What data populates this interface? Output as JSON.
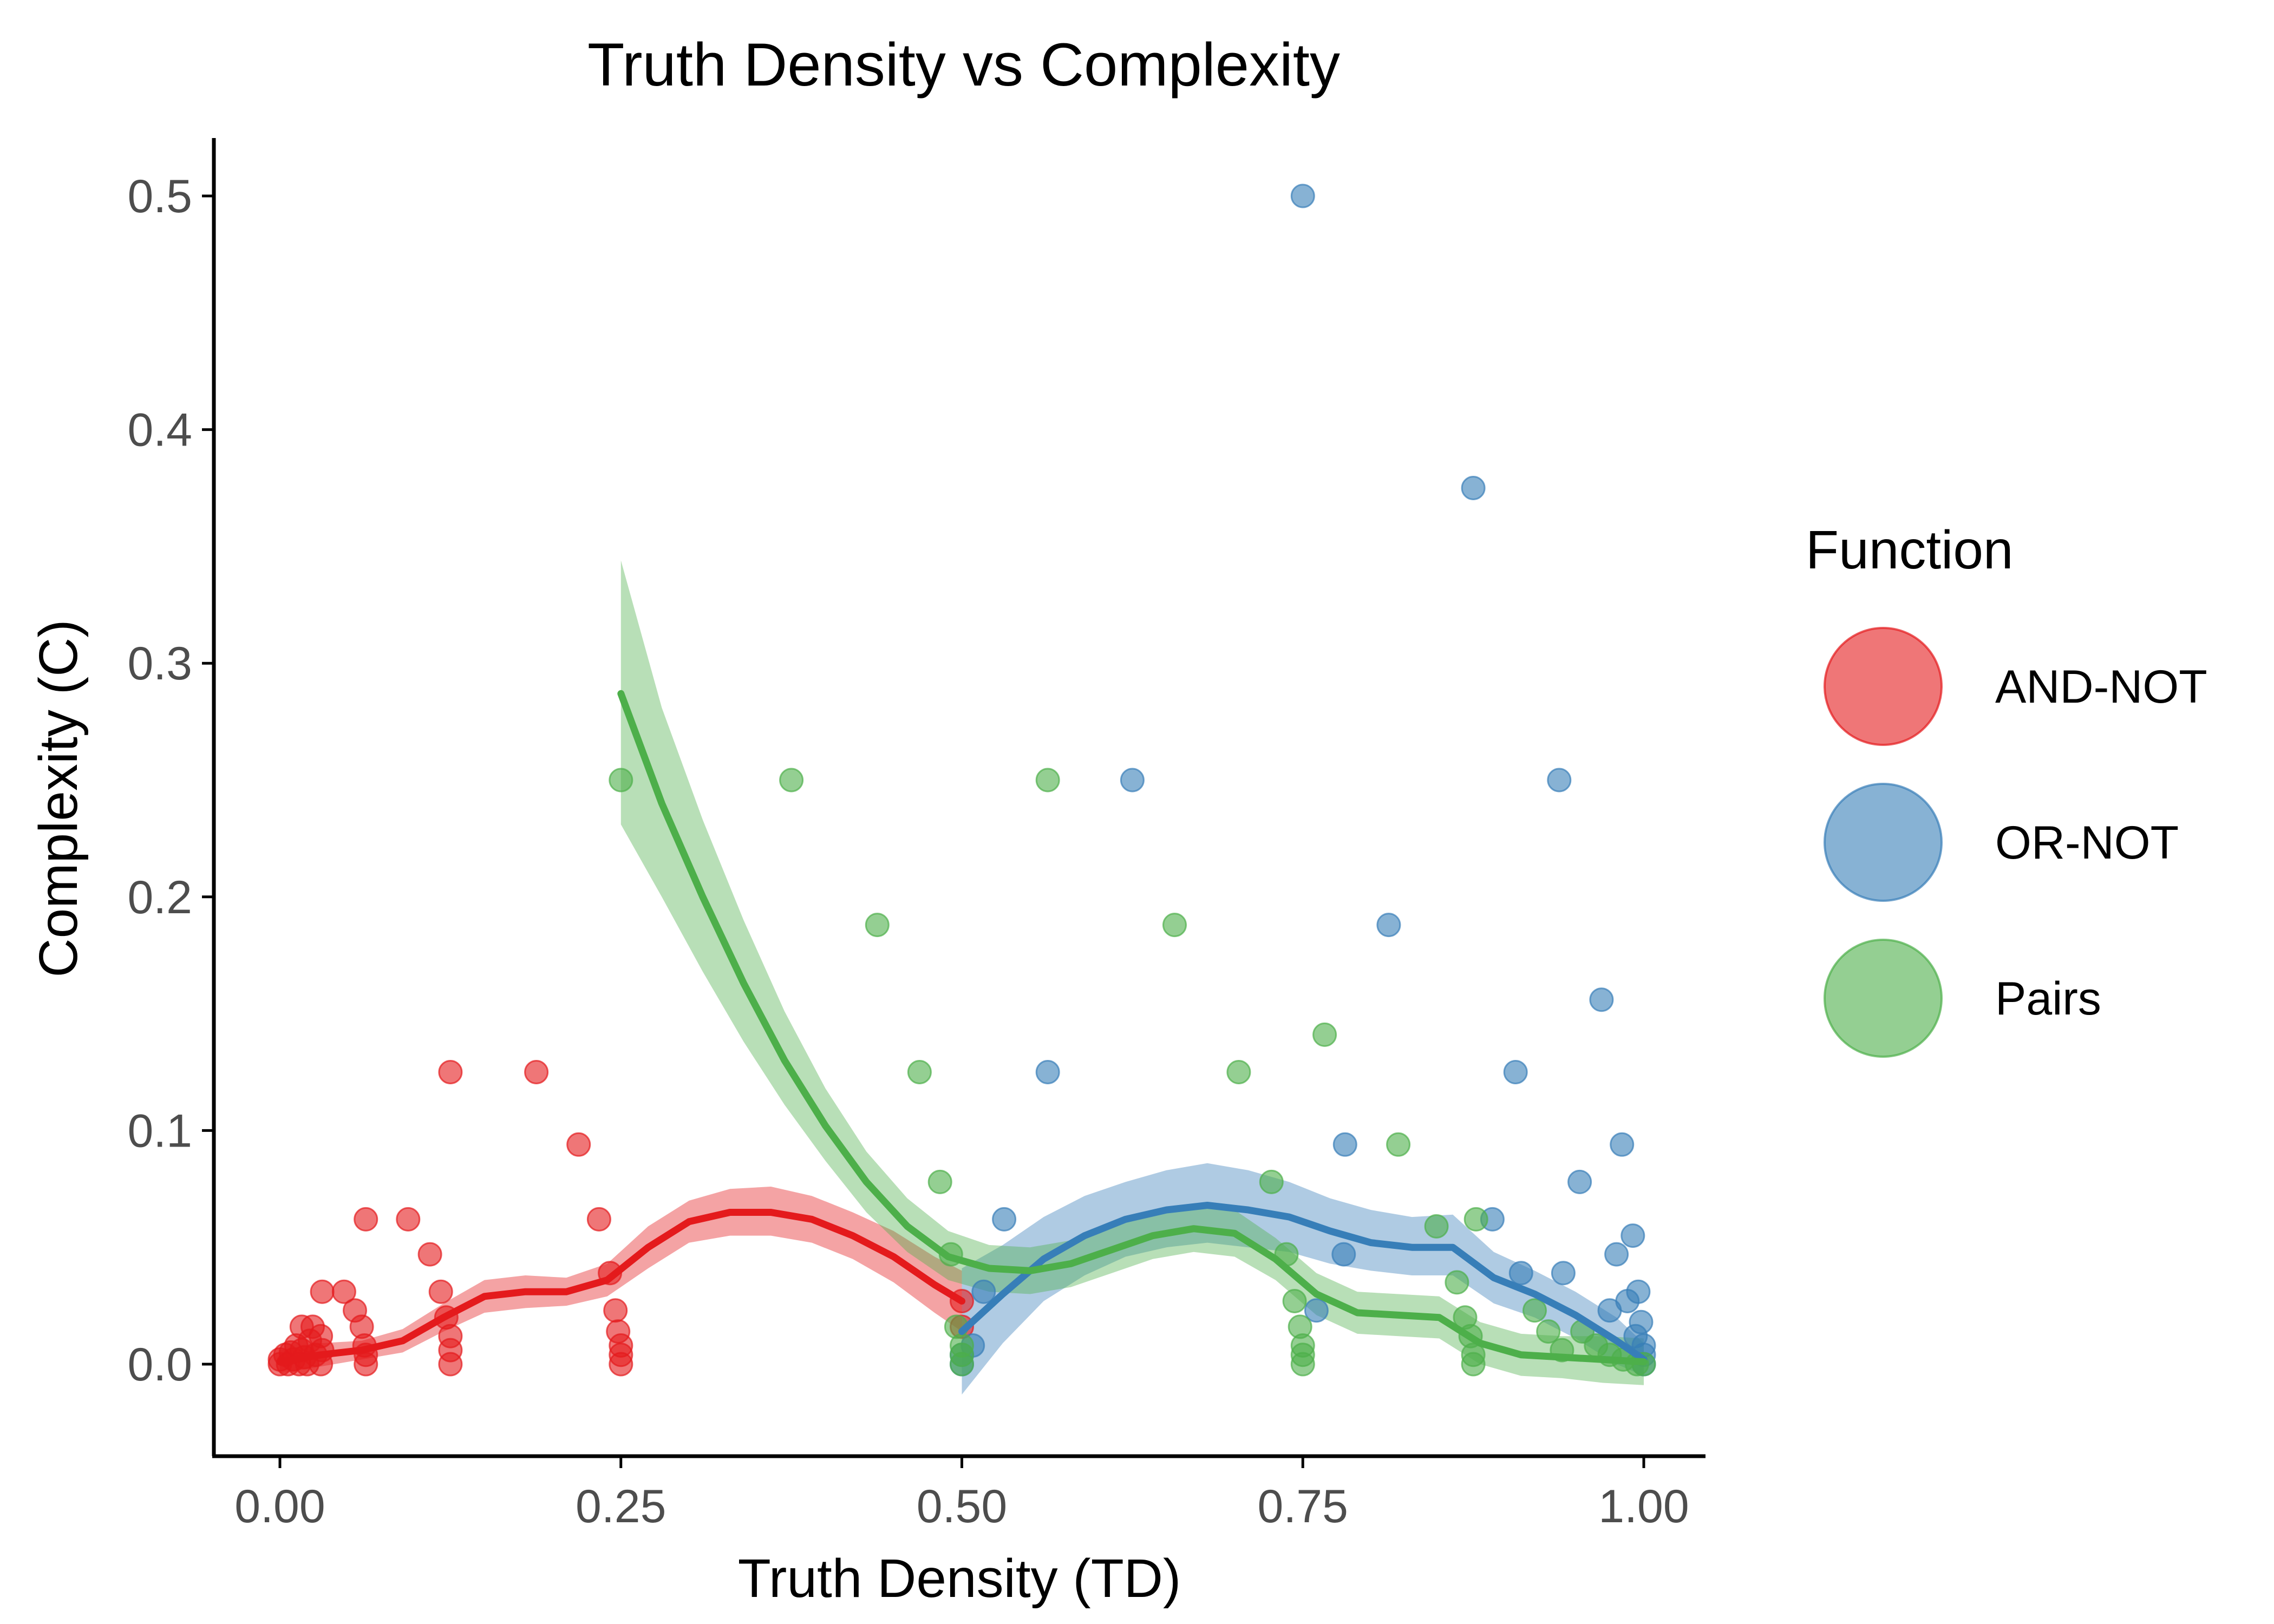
{
  "chart_data": {
    "type": "scatter",
    "title": "Truth Density vs Complexity",
    "xlabel": "Truth Density (TD)",
    "ylabel": "Complexity (C)",
    "xlim": [
      -0.025,
      1.045
    ],
    "ylim": [
      -0.04,
      0.525
    ],
    "x_ticks": [
      0.0,
      0.25,
      0.5,
      0.75,
      1.0
    ],
    "x_tick_labels": [
      "0.00",
      "0.25",
      "0.50",
      "0.75",
      "1.00"
    ],
    "y_ticks": [
      0.0,
      0.1,
      0.2,
      0.3,
      0.4,
      0.5
    ],
    "y_tick_labels": [
      "0.0",
      "0.1",
      "0.2",
      "0.3",
      "0.4",
      "0.5"
    ],
    "grid": false,
    "legend": {
      "title": "Function",
      "placement": "right"
    },
    "series": [
      {
        "name": "AND-NOT",
        "color": "#e41a1c",
        "points": [
          [
            0.0,
            0.0
          ],
          [
            0.0,
            0.002
          ],
          [
            0.004,
            0.004
          ],
          [
            0.006,
            0.0
          ],
          [
            0.008,
            0.005
          ],
          [
            0.01,
            0.002
          ],
          [
            0.012,
            0.008
          ],
          [
            0.014,
            0.0
          ],
          [
            0.016,
            0.006
          ],
          [
            0.016,
            0.016
          ],
          [
            0.018,
            0.003
          ],
          [
            0.02,
            0.0
          ],
          [
            0.022,
            0.01
          ],
          [
            0.024,
            0.016
          ],
          [
            0.026,
            0.004
          ],
          [
            0.03,
            0.012
          ],
          [
            0.03,
            0.0
          ],
          [
            0.031,
            0.031
          ],
          [
            0.031,
            0.006
          ],
          [
            0.047,
            0.031
          ],
          [
            0.055,
            0.023
          ],
          [
            0.06,
            0.016
          ],
          [
            0.062,
            0.008
          ],
          [
            0.063,
            0.0
          ],
          [
            0.063,
            0.004
          ],
          [
            0.063,
            0.062
          ],
          [
            0.094,
            0.062
          ],
          [
            0.11,
            0.047
          ],
          [
            0.118,
            0.031
          ],
          [
            0.122,
            0.02
          ],
          [
            0.125,
            0.012
          ],
          [
            0.125,
            0.006
          ],
          [
            0.125,
            0.0
          ],
          [
            0.125,
            0.125
          ],
          [
            0.188,
            0.125
          ],
          [
            0.219,
            0.094
          ],
          [
            0.234,
            0.062
          ],
          [
            0.242,
            0.039
          ],
          [
            0.246,
            0.023
          ],
          [
            0.248,
            0.014
          ],
          [
            0.25,
            0.008
          ],
          [
            0.25,
            0.004
          ],
          [
            0.25,
            0.0
          ],
          [
            0.5,
            0.016
          ],
          [
            0.5,
            0.027
          ]
        ]
      },
      {
        "name": "OR-NOT",
        "color": "#377eb8",
        "points": [
          [
            0.5,
            0.0
          ],
          [
            0.5,
            0.004
          ],
          [
            0.508,
            0.008
          ],
          [
            0.516,
            0.031
          ],
          [
            0.531,
            0.062
          ],
          [
            0.563,
            0.125
          ],
          [
            0.625,
            0.25
          ],
          [
            0.75,
            0.5
          ],
          [
            0.76,
            0.023
          ],
          [
            0.78,
            0.047
          ],
          [
            0.781,
            0.094
          ],
          [
            0.813,
            0.188
          ],
          [
            0.875,
            0.375
          ],
          [
            0.889,
            0.062
          ],
          [
            0.906,
            0.125
          ],
          [
            0.91,
            0.039
          ],
          [
            0.938,
            0.25
          ],
          [
            0.941,
            0.039
          ],
          [
            0.953,
            0.078
          ],
          [
            0.969,
            0.156
          ],
          [
            0.975,
            0.023
          ],
          [
            0.98,
            0.047
          ],
          [
            0.984,
            0.094
          ],
          [
            0.988,
            0.027
          ],
          [
            0.992,
            0.055
          ],
          [
            0.994,
            0.012
          ],
          [
            0.996,
            0.031
          ],
          [
            0.998,
            0.018
          ],
          [
            1.0,
            0.0
          ],
          [
            1.0,
            0.004
          ],
          [
            1.0,
            0.008
          ]
        ]
      },
      {
        "name": "Pairs",
        "color": "#4daf4a",
        "points": [
          [
            0.25,
            0.25
          ],
          [
            0.375,
            0.25
          ],
          [
            0.438,
            0.188
          ],
          [
            0.469,
            0.125
          ],
          [
            0.484,
            0.078
          ],
          [
            0.492,
            0.047
          ],
          [
            0.496,
            0.016
          ],
          [
            0.5,
            0.008
          ],
          [
            0.5,
            0.0
          ],
          [
            0.5,
            0.004
          ],
          [
            0.563,
            0.25
          ],
          [
            0.656,
            0.188
          ],
          [
            0.703,
            0.125
          ],
          [
            0.727,
            0.078
          ],
          [
            0.738,
            0.047
          ],
          [
            0.744,
            0.027
          ],
          [
            0.748,
            0.016
          ],
          [
            0.75,
            0.008
          ],
          [
            0.75,
            0.0
          ],
          [
            0.75,
            0.004
          ],
          [
            0.766,
            0.141
          ],
          [
            0.82,
            0.094
          ],
          [
            0.848,
            0.059
          ],
          [
            0.863,
            0.035
          ],
          [
            0.869,
            0.02
          ],
          [
            0.873,
            0.012
          ],
          [
            0.875,
            0.004
          ],
          [
            0.875,
            0.0
          ],
          [
            0.877,
            0.062
          ],
          [
            0.92,
            0.023
          ],
          [
            0.93,
            0.014
          ],
          [
            0.94,
            0.006
          ],
          [
            0.955,
            0.014
          ],
          [
            0.965,
            0.008
          ],
          [
            0.975,
            0.004
          ],
          [
            0.985,
            0.002
          ],
          [
            0.995,
            0.0
          ],
          [
            1.0,
            0.0
          ]
        ]
      }
    ],
    "smooth_curves": [
      {
        "name": "AND-NOT",
        "color": "#e41a1c",
        "x": [
          0.0,
          0.03,
          0.06,
          0.09,
          0.12,
          0.15,
          0.18,
          0.21,
          0.24,
          0.27,
          0.3,
          0.33,
          0.36,
          0.39,
          0.42,
          0.45,
          0.48,
          0.5
        ],
        "y": [
          0.001,
          0.004,
          0.006,
          0.01,
          0.02,
          0.029,
          0.031,
          0.031,
          0.036,
          0.05,
          0.061,
          0.065,
          0.065,
          0.062,
          0.055,
          0.046,
          0.034,
          0.027
        ],
        "lower": [
          -0.004,
          -0.001,
          0.002,
          0.005,
          0.014,
          0.022,
          0.024,
          0.025,
          0.029,
          0.041,
          0.052,
          0.055,
          0.055,
          0.052,
          0.045,
          0.035,
          0.022,
          0.014
        ],
        "upper": [
          0.006,
          0.009,
          0.01,
          0.015,
          0.026,
          0.036,
          0.038,
          0.037,
          0.043,
          0.059,
          0.07,
          0.075,
          0.076,
          0.072,
          0.065,
          0.057,
          0.046,
          0.04
        ]
      },
      {
        "name": "OR-NOT",
        "color": "#377eb8",
        "x": [
          0.5,
          0.53,
          0.56,
          0.59,
          0.62,
          0.65,
          0.68,
          0.71,
          0.74,
          0.77,
          0.8,
          0.83,
          0.86,
          0.89,
          0.92,
          0.95,
          0.98,
          1.0
        ],
        "y": [
          0.014,
          0.03,
          0.045,
          0.055,
          0.062,
          0.066,
          0.068,
          0.066,
          0.063,
          0.057,
          0.052,
          0.05,
          0.05,
          0.037,
          0.03,
          0.021,
          0.01,
          0.002
        ],
        "lower": [
          -0.013,
          0.009,
          0.027,
          0.038,
          0.046,
          0.05,
          0.052,
          0.05,
          0.048,
          0.043,
          0.04,
          0.038,
          0.038,
          0.026,
          0.02,
          0.011,
          0.0,
          -0.005
        ],
        "upper": [
          0.041,
          0.051,
          0.063,
          0.072,
          0.078,
          0.083,
          0.086,
          0.083,
          0.078,
          0.071,
          0.066,
          0.063,
          0.064,
          0.048,
          0.04,
          0.031,
          0.02,
          0.009
        ]
      },
      {
        "name": "Pairs",
        "color": "#4daf4a",
        "x": [
          0.25,
          0.28,
          0.31,
          0.34,
          0.37,
          0.4,
          0.43,
          0.46,
          0.49,
          0.52,
          0.55,
          0.58,
          0.61,
          0.64,
          0.67,
          0.7,
          0.73,
          0.76,
          0.79,
          0.82,
          0.85,
          0.88,
          0.91,
          0.94,
          0.97,
          1.0
        ],
        "y": [
          0.287,
          0.24,
          0.2,
          0.163,
          0.13,
          0.102,
          0.078,
          0.059,
          0.046,
          0.041,
          0.04,
          0.043,
          0.049,
          0.055,
          0.058,
          0.056,
          0.045,
          0.03,
          0.022,
          0.021,
          0.02,
          0.009,
          0.004,
          0.003,
          0.002,
          0.001
        ],
        "lower": [
          0.231,
          0.2,
          0.168,
          0.138,
          0.111,
          0.087,
          0.065,
          0.048,
          0.036,
          0.031,
          0.03,
          0.033,
          0.039,
          0.045,
          0.048,
          0.046,
          0.036,
          0.021,
          0.013,
          0.012,
          0.011,
          0.0,
          -0.005,
          -0.006,
          -0.008,
          -0.009
        ],
        "upper": [
          0.344,
          0.281,
          0.233,
          0.19,
          0.151,
          0.118,
          0.091,
          0.071,
          0.057,
          0.051,
          0.05,
          0.053,
          0.059,
          0.065,
          0.068,
          0.066,
          0.054,
          0.039,
          0.031,
          0.03,
          0.029,
          0.018,
          0.013,
          0.012,
          0.012,
          0.011
        ]
      }
    ]
  }
}
